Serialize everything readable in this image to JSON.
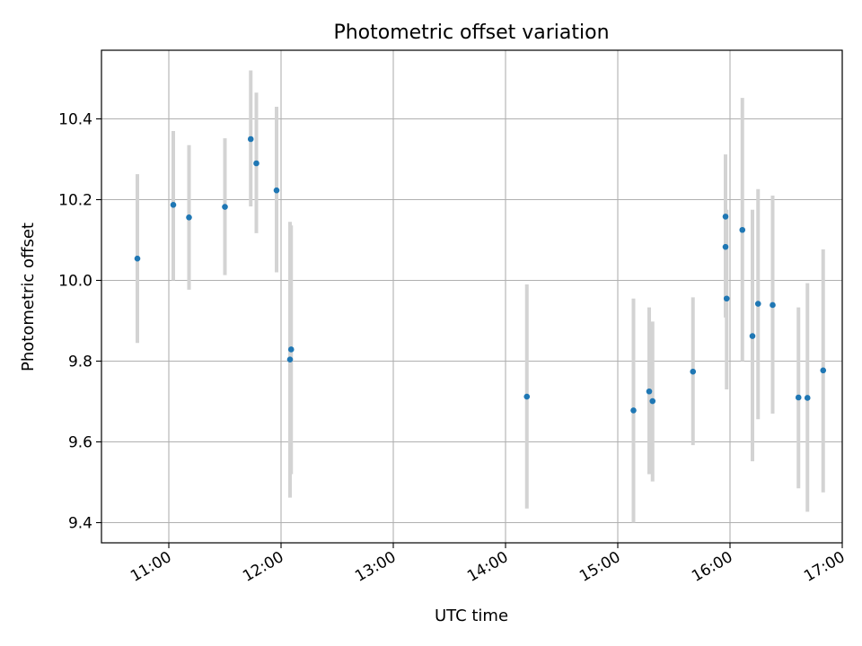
{
  "chart_data": {
    "type": "scatter",
    "title": "Photometric offset variation",
    "xlabel": "UTC time",
    "ylabel": "Photometric offset",
    "grid": true,
    "xlim": [
      10.4,
      17.0
    ],
    "ylim": [
      9.35,
      10.57
    ],
    "x_ticks": [
      {
        "value": 11,
        "label": "11:00"
      },
      {
        "value": 12,
        "label": "12:00"
      },
      {
        "value": 13,
        "label": "13:00"
      },
      {
        "value": 14,
        "label": "14:00"
      },
      {
        "value": 15,
        "label": "15:00"
      },
      {
        "value": 16,
        "label": "16:00"
      },
      {
        "value": 17,
        "label": "17:00"
      }
    ],
    "y_ticks": [
      {
        "value": 9.4,
        "label": "9.4"
      },
      {
        "value": 9.6,
        "label": "9.6"
      },
      {
        "value": 9.8,
        "label": "9.8"
      },
      {
        "value": 10.0,
        "label": "10.0"
      },
      {
        "value": 10.2,
        "label": "10.2"
      },
      {
        "value": 10.4,
        "label": "10.4"
      }
    ],
    "marker_color": "#1f77b4",
    "errorbar_color": "#d3d3d3",
    "series": [
      {
        "name": "offset",
        "x": [
          10.72,
          11.04,
          11.18,
          11.5,
          11.73,
          11.78,
          11.96,
          12.08,
          12.09,
          14.19,
          15.14,
          15.28,
          15.31,
          15.67,
          15.96,
          15.96,
          15.97,
          16.11,
          16.2,
          16.25,
          16.38,
          16.61,
          16.69,
          16.83
        ],
        "y": [
          10.054,
          10.187,
          10.156,
          10.182,
          10.35,
          10.29,
          10.223,
          9.804,
          9.829,
          9.712,
          9.678,
          9.725,
          9.701,
          9.774,
          10.158,
          10.083,
          9.955,
          10.125,
          9.862,
          9.942,
          9.939,
          9.71,
          9.709,
          9.777
        ],
        "err_low": [
          9.845,
          10.0,
          9.977,
          10.013,
          10.183,
          10.117,
          10.02,
          9.462,
          9.52,
          9.435,
          9.4,
          9.52,
          9.502,
          9.592,
          9.908,
          9.91,
          9.73,
          9.8,
          9.552,
          9.656,
          9.67,
          9.485,
          9.427,
          9.475
        ],
        "err_high": [
          10.263,
          10.37,
          10.335,
          10.352,
          10.52,
          10.465,
          10.43,
          10.145,
          10.136,
          9.99,
          9.955,
          9.933,
          9.898,
          9.958,
          10.312,
          10.258,
          10.175,
          10.452,
          10.175,
          10.226,
          10.21,
          9.933,
          9.993,
          10.077
        ]
      }
    ]
  }
}
